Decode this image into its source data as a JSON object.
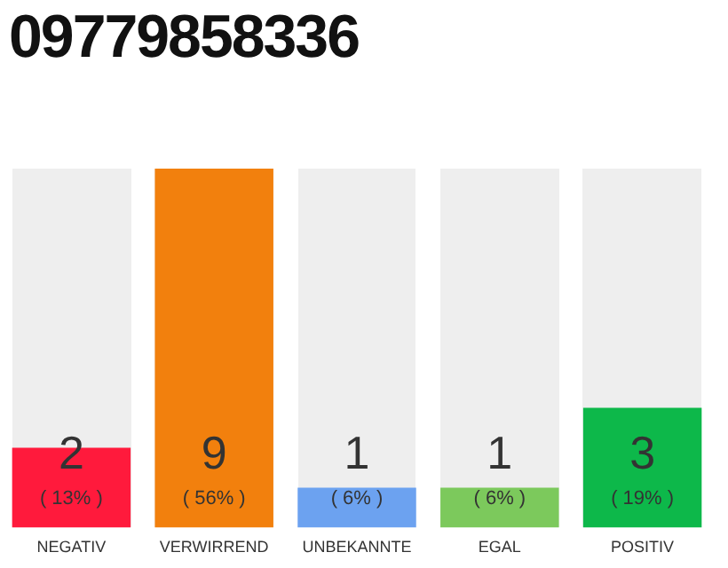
{
  "chart_data": {
    "type": "bar",
    "title": "09779858336",
    "categories": [
      "NEGATIV",
      "VERWIRREND",
      "UNBEKANNTE",
      "EGAL",
      "POSITIV"
    ],
    "values": [
      2,
      9,
      1,
      1,
      3
    ],
    "colors": [
      "#ff1a3c",
      "#f2800d",
      "#6ca2f0",
      "#7cc95c",
      "#0db84a"
    ],
    "value_labels": [
      "2\n( 13% )",
      "9\n( 56% )",
      "1\n( 6% )",
      "1\n( 6% )",
      "3\n( 19% )"
    ],
    "grid": false,
    "legend": false
  }
}
